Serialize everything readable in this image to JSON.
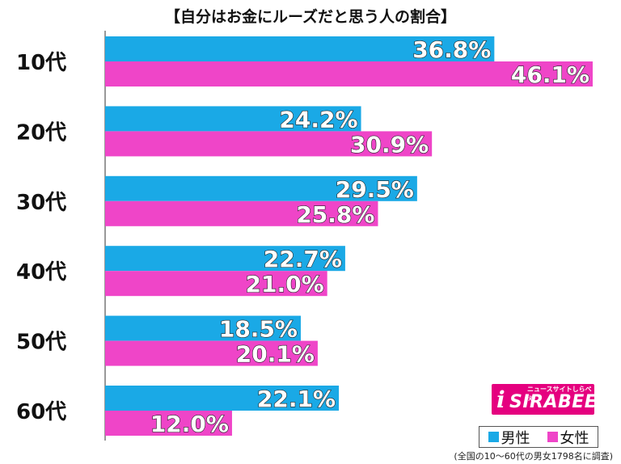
{
  "chart_data": {
    "type": "bar",
    "orientation": "horizontal",
    "title": "【自分はお金にルーズだと思う人の割合】",
    "categories": [
      "10代",
      "20代",
      "30代",
      "40代",
      "50代",
      "60代"
    ],
    "series": [
      {
        "name": "男性",
        "color": "#1aa9e6",
        "values": [
          36.8,
          24.2,
          29.5,
          22.7,
          18.5,
          22.1
        ]
      },
      {
        "name": "女性",
        "color": "#ef45c8",
        "values": [
          46.1,
          30.9,
          25.8,
          21.0,
          20.1,
          12.0
        ]
      }
    ],
    "value_suffix": "%",
    "xlim": [
      0,
      50
    ],
    "grid": false,
    "legend_position": "bottom-right",
    "footnote": "(全国の10～60代の男女1798名に調査)"
  },
  "logo": {
    "mark": "i",
    "name": "SIRABEE",
    "tagline": "ニュースサイトしらべぇ"
  }
}
